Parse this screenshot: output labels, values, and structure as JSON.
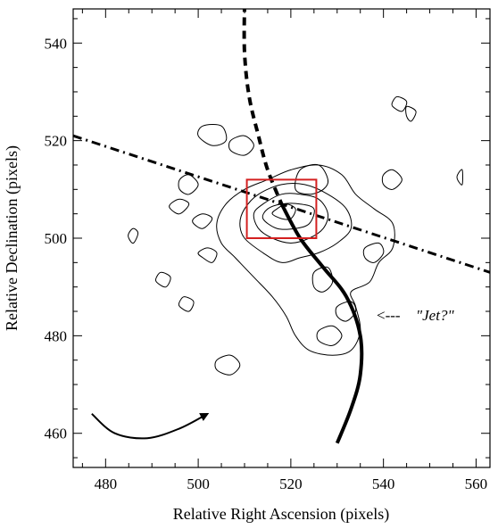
{
  "chart_data": {
    "type": "contour",
    "xlabel": "Relative Right Ascension (pixels)",
    "ylabel": "Relative Declination (pixels)",
    "xlim": [
      473,
      563
    ],
    "ylim": [
      453,
      547
    ],
    "xticks": [
      480,
      500,
      520,
      540,
      560
    ],
    "yticks": [
      460,
      480,
      500,
      520,
      540
    ],
    "grid": false,
    "colors": {
      "box": "#d42020",
      "ink": "#000000"
    },
    "contours": [
      {
        "name": "outer-envelope",
        "points": [
          [
            508,
            496
          ],
          [
            512,
            492
          ],
          [
            516,
            488
          ],
          [
            519,
            484
          ],
          [
            521,
            480
          ],
          [
            524,
            477
          ],
          [
            529,
            476
          ],
          [
            533,
            477
          ],
          [
            535,
            481
          ],
          [
            534,
            486
          ],
          [
            533,
            489
          ],
          [
            537,
            491
          ],
          [
            539,
            495
          ],
          [
            542,
            498
          ],
          [
            542,
            503
          ],
          [
            538,
            506
          ],
          [
            534,
            509
          ],
          [
            531,
            513
          ],
          [
            526,
            515
          ],
          [
            520,
            514
          ],
          [
            515,
            512
          ],
          [
            510,
            510
          ],
          [
            506,
            507
          ],
          [
            504,
            503
          ],
          [
            505,
            499
          ]
        ]
      },
      {
        "name": "ring-2",
        "points": [
          [
            510,
            500
          ],
          [
            514,
            497
          ],
          [
            518,
            495
          ],
          [
            522,
            496
          ],
          [
            526,
            497
          ],
          [
            530,
            499
          ],
          [
            533,
            502
          ],
          [
            532,
            506
          ],
          [
            528,
            509
          ],
          [
            523,
            511
          ],
          [
            518,
            511
          ],
          [
            513,
            509
          ],
          [
            510,
            506
          ],
          [
            509,
            503
          ]
        ]
      },
      {
        "name": "ring-3",
        "points": [
          [
            513,
            502
          ],
          [
            516,
            500
          ],
          [
            520,
            499
          ],
          [
            524,
            500
          ],
          [
            527,
            502
          ],
          [
            528,
            505
          ],
          [
            526,
            508
          ],
          [
            522,
            509
          ],
          [
            518,
            509
          ],
          [
            514,
            507
          ],
          [
            512,
            505
          ]
        ]
      },
      {
        "name": "ring-4",
        "points": [
          [
            514,
            504
          ],
          [
            517,
            502
          ],
          [
            521,
            502
          ],
          [
            524,
            503
          ],
          [
            525,
            506
          ],
          [
            522,
            507
          ],
          [
            518,
            507
          ],
          [
            515,
            506
          ]
        ]
      },
      {
        "name": "core",
        "points": [
          [
            516,
            505
          ],
          [
            518,
            504
          ],
          [
            520,
            504
          ],
          [
            521,
            506
          ],
          [
            519,
            507
          ],
          [
            517,
            506
          ]
        ]
      },
      {
        "name": "upper-clump",
        "points": [
          [
            521,
            510
          ],
          [
            524,
            509
          ],
          [
            527,
            510
          ],
          [
            528,
            512
          ],
          [
            526,
            515
          ],
          [
            522,
            514
          ]
        ]
      },
      {
        "name": "jet-clump-1",
        "points": [
          [
            525,
            490
          ],
          [
            527,
            489
          ],
          [
            529,
            491
          ],
          [
            528,
            494
          ],
          [
            525,
            493
          ]
        ]
      },
      {
        "name": "jet-clump-2",
        "points": [
          [
            530,
            484
          ],
          [
            532,
            483
          ],
          [
            534,
            485
          ],
          [
            533,
            487
          ],
          [
            530,
            486
          ]
        ]
      },
      {
        "name": "jet-clump-3",
        "points": [
          [
            526,
            479
          ],
          [
            529,
            478
          ],
          [
            531,
            480
          ],
          [
            529,
            482
          ],
          [
            526,
            481
          ]
        ]
      },
      {
        "name": "right-knot-1",
        "points": [
          [
            536,
            496
          ],
          [
            538,
            495
          ],
          [
            540,
            497
          ],
          [
            539,
            499
          ],
          [
            536,
            498
          ]
        ]
      },
      {
        "name": "right-knot-2",
        "points": [
          [
            540,
            511
          ],
          [
            542,
            510
          ],
          [
            544,
            512
          ],
          [
            542,
            514
          ],
          [
            540,
            513
          ]
        ]
      },
      {
        "name": "nw-blob-1",
        "points": [
          [
            500,
            521
          ],
          [
            503,
            519
          ],
          [
            506,
            520
          ],
          [
            505,
            523
          ],
          [
            501,
            523
          ]
        ]
      },
      {
        "name": "nw-blob-2",
        "points": [
          [
            507,
            518
          ],
          [
            510,
            517
          ],
          [
            512,
            519
          ],
          [
            510,
            521
          ],
          [
            507,
            520
          ]
        ]
      },
      {
        "name": "nw-blob-3",
        "points": [
          [
            496,
            510
          ],
          [
            498,
            509
          ],
          [
            500,
            511
          ],
          [
            498,
            513
          ],
          [
            496,
            512
          ]
        ]
      },
      {
        "name": "west-blob-1",
        "points": [
          [
            494,
            506
          ],
          [
            496,
            505
          ],
          [
            498,
            507
          ],
          [
            496,
            508
          ],
          [
            494,
            507
          ]
        ]
      },
      {
        "name": "west-blob-2",
        "points": [
          [
            499,
            503
          ],
          [
            501,
            502
          ],
          [
            503,
            504
          ],
          [
            501,
            505
          ],
          [
            499,
            504
          ]
        ]
      },
      {
        "name": "west-blob-3",
        "points": [
          [
            485,
            500
          ],
          [
            486,
            499
          ],
          [
            487,
            501
          ],
          [
            486,
            502
          ],
          [
            485,
            501
          ]
        ]
      },
      {
        "name": "west-blob-4",
        "points": [
          [
            501,
            496
          ],
          [
            503,
            495
          ],
          [
            504,
            497
          ],
          [
            502,
            498
          ],
          [
            500,
            497
          ]
        ]
      },
      {
        "name": "sw-blob-1",
        "points": [
          [
            491,
            491
          ],
          [
            493,
            490
          ],
          [
            494,
            492
          ],
          [
            492,
            493
          ],
          [
            491,
            492
          ]
        ]
      },
      {
        "name": "sw-blob-2",
        "points": [
          [
            496,
            486
          ],
          [
            498,
            485
          ],
          [
            499,
            487
          ],
          [
            497,
            488
          ],
          [
            496,
            487
          ]
        ]
      },
      {
        "name": "south-blob",
        "points": [
          [
            504,
            473
          ],
          [
            507,
            472
          ],
          [
            509,
            474
          ],
          [
            507,
            476
          ],
          [
            504,
            475
          ]
        ]
      },
      {
        "name": "ne-knot",
        "points": [
          [
            542,
            527
          ],
          [
            544,
            526
          ],
          [
            545,
            528
          ],
          [
            543,
            529
          ],
          [
            542,
            528
          ]
        ]
      },
      {
        "name": "ne-knot-2",
        "points": [
          [
            545,
            525
          ],
          [
            546,
            524
          ],
          [
            547,
            526
          ],
          [
            545,
            527
          ]
        ]
      },
      {
        "name": "far-east-knot",
        "points": [
          [
            556,
            512
          ],
          [
            557,
            511
          ],
          [
            557,
            514
          ],
          [
            556,
            513
          ]
        ]
      }
    ],
    "curves": [
      {
        "name": "dashed-trajectory",
        "style": "dashed",
        "points": [
          [
            510,
            548
          ],
          [
            510,
            538
          ],
          [
            511,
            529
          ],
          [
            513,
            521
          ],
          [
            515,
            514
          ],
          [
            518,
            507
          ]
        ]
      },
      {
        "name": "solid-trajectory",
        "style": "solid",
        "points": [
          [
            518,
            507
          ],
          [
            522,
            500
          ],
          [
            527,
            494
          ],
          [
            532,
            488
          ],
          [
            535,
            480
          ],
          [
            535,
            472
          ],
          [
            533,
            465
          ],
          [
            530,
            458
          ]
        ]
      },
      {
        "name": "dash-dot-axis",
        "style": "dash-dot",
        "points": [
          [
            473,
            521
          ],
          [
            563,
            493
          ]
        ]
      },
      {
        "name": "rotation-arrow",
        "style": "arrow",
        "points": [
          [
            477,
            464
          ],
          [
            482,
            460
          ],
          [
            489,
            459
          ],
          [
            496,
            461
          ],
          [
            502,
            464
          ]
        ]
      }
    ],
    "box": {
      "x": [
        510.5,
        525.5
      ],
      "y": [
        500,
        512
      ]
    },
    "annotation": {
      "text": "\"Jet?\"",
      "dash": "<---",
      "x": 537,
      "y": 484
    }
  }
}
